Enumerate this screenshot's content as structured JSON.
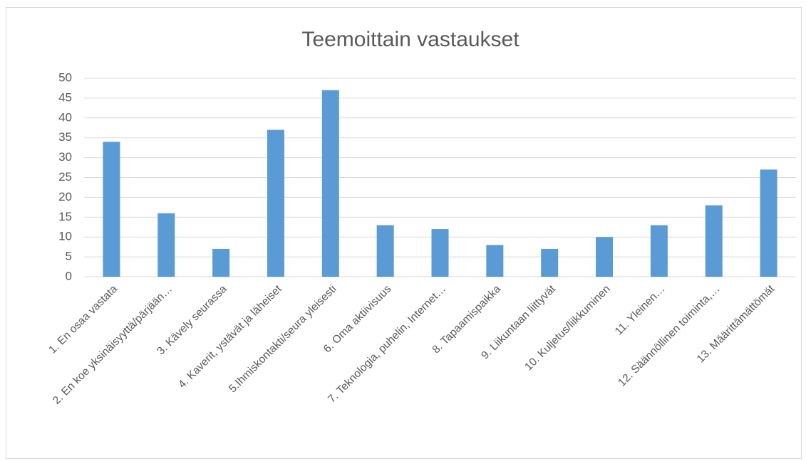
{
  "chart_data": {
    "type": "bar",
    "title": "Teemoittain vastaukset",
    "categories": [
      "1. En osaa vastata",
      "2. En koe yksinäisyyttä/pärjään…",
      "3. Kävely seurassa",
      "4. Kaverit, ystävät ja läheiset",
      "5.Ihmiskontakti/seura yleisesti",
      "6. Oma aktiivisuus",
      "7. Teknologia, puhelin, Internet…",
      "8. Tapaamispaikka",
      "9. Liikuntaan liittyvät",
      "10. Kuljetus/liikkuminen",
      "11. Yleinen…",
      "12. Säännöllinen toiminta,…",
      "13. Määrittämättömät"
    ],
    "values": [
      34,
      16,
      7,
      37,
      47,
      13,
      12,
      8,
      7,
      10,
      13,
      18,
      27
    ],
    "color": "#5b9bd5",
    "ylim": [
      0,
      50
    ],
    "yticks": [
      0,
      5,
      10,
      15,
      20,
      25,
      30,
      35,
      40,
      45,
      50
    ],
    "grid": true
  }
}
